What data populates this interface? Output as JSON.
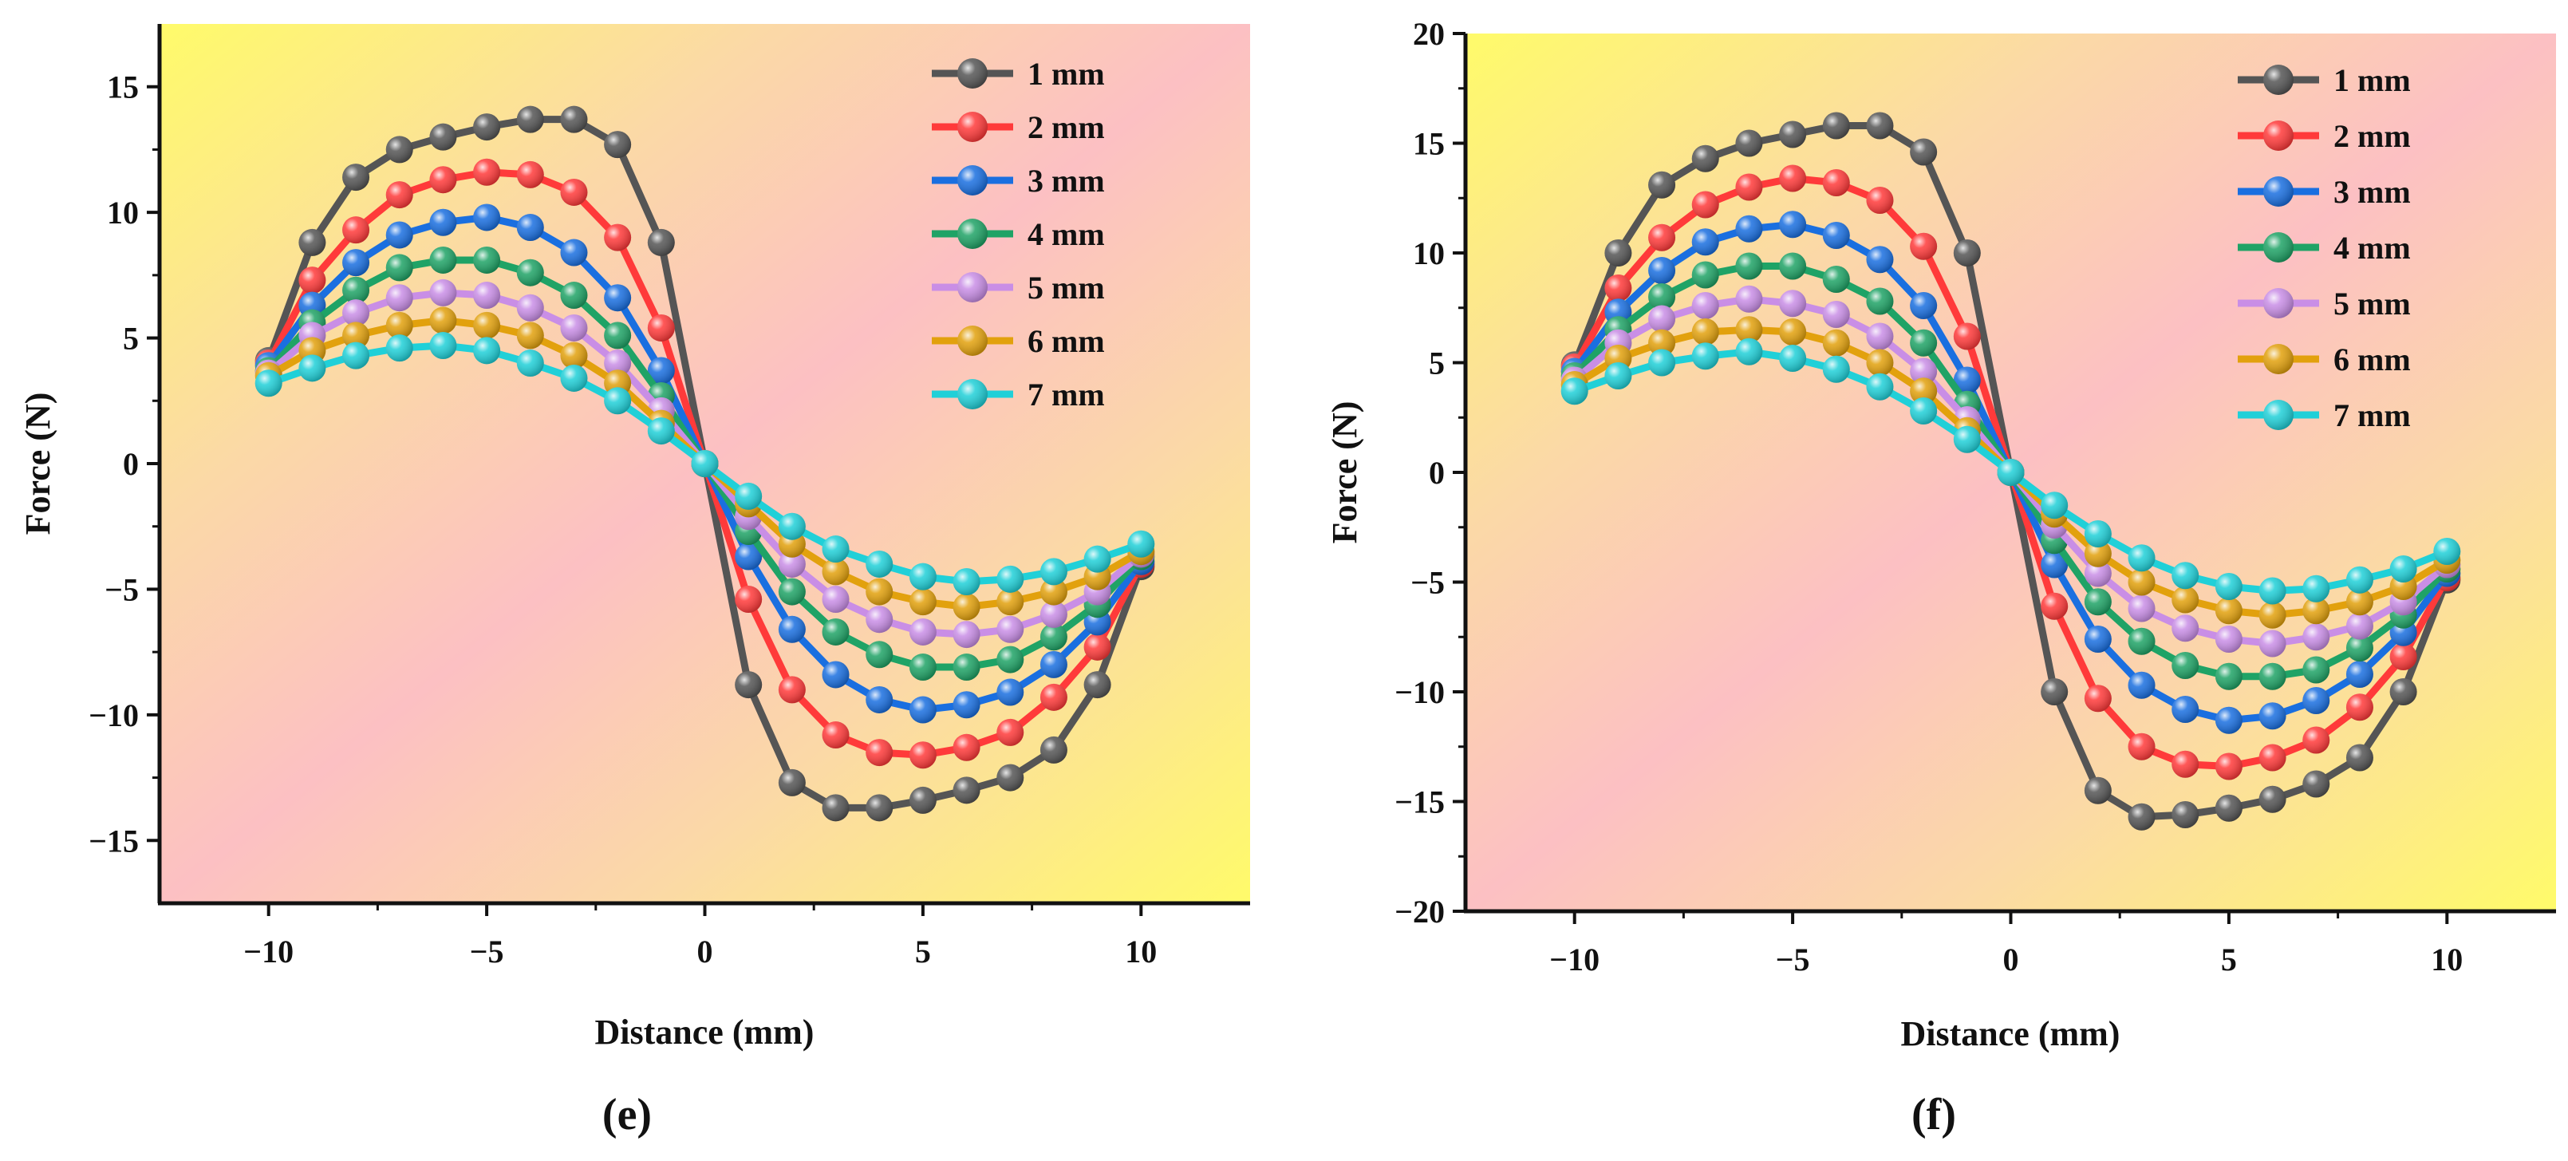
{
  "chart_data": [
    {
      "type": "line",
      "panel_label": "e",
      "xlabel": "Distance (mm)",
      "ylabel": "Force (N)",
      "xlim": [
        -12.5,
        12.5
      ],
      "ylim": [
        -17.5,
        17.5
      ],
      "xticks": [
        -10,
        -5,
        0,
        5,
        10
      ],
      "yticks": [
        -15,
        -10,
        -5,
        0,
        5,
        10,
        15
      ],
      "xtick_labels": [
        "−10",
        "−5",
        "0",
        "5",
        "10"
      ],
      "ytick_labels": [
        "−15",
        "−10",
        "−5",
        "0",
        "5",
        "10",
        "15"
      ],
      "legend_position": "top-right",
      "grid": false,
      "x": [
        -10,
        -9,
        -8,
        -7,
        -6,
        -5,
        -4,
        -3,
        -2,
        -1,
        0,
        1,
        2,
        3,
        4,
        5,
        6,
        7,
        8,
        9,
        10
      ],
      "series": [
        {
          "name": "1 mm",
          "color": "#555555",
          "values": [
            4.1,
            8.8,
            11.4,
            12.5,
            13.0,
            13.4,
            13.7,
            13.7,
            12.7,
            8.8,
            0,
            -8.8,
            -12.7,
            -13.7,
            -13.7,
            -13.4,
            -13.0,
            -12.5,
            -11.4,
            -8.8,
            -4.1
          ]
        },
        {
          "name": "2 mm",
          "color": "#ff3a3a",
          "values": [
            4.0,
            7.3,
            9.3,
            10.7,
            11.3,
            11.6,
            11.5,
            10.8,
            9.0,
            5.4,
            0,
            -5.4,
            -9.0,
            -10.8,
            -11.5,
            -11.6,
            -11.3,
            -10.7,
            -9.3,
            -7.3,
            -4.0
          ]
        },
        {
          "name": "3 mm",
          "color": "#1a6fe0",
          "values": [
            3.9,
            6.3,
            8.0,
            9.1,
            9.6,
            9.8,
            9.4,
            8.4,
            6.6,
            3.7,
            0,
            -3.7,
            -6.6,
            -8.4,
            -9.4,
            -9.8,
            -9.6,
            -9.1,
            -8.0,
            -6.3,
            -3.9
          ]
        },
        {
          "name": "4 mm",
          "color": "#1fa366",
          "values": [
            3.7,
            5.6,
            6.9,
            7.8,
            8.1,
            8.1,
            7.6,
            6.7,
            5.1,
            2.7,
            0,
            -2.7,
            -5.1,
            -6.7,
            -7.6,
            -8.1,
            -8.1,
            -7.8,
            -6.9,
            -5.6,
            -3.7
          ]
        },
        {
          "name": "5 mm",
          "color": "#c98ee6",
          "values": [
            3.6,
            5.1,
            6.0,
            6.6,
            6.8,
            6.7,
            6.2,
            5.4,
            4.0,
            2.1,
            0,
            -2.1,
            -4.0,
            -5.4,
            -6.2,
            -6.7,
            -6.8,
            -6.6,
            -6.0,
            -5.1,
            -3.6
          ]
        },
        {
          "name": "6 mm",
          "color": "#e2a10d",
          "values": [
            3.5,
            4.5,
            5.1,
            5.5,
            5.7,
            5.5,
            5.1,
            4.3,
            3.2,
            1.6,
            0,
            -1.6,
            -3.2,
            -4.3,
            -5.1,
            -5.5,
            -5.7,
            -5.5,
            -5.1,
            -4.5,
            -3.5
          ]
        },
        {
          "name": "7 mm",
          "color": "#20d0d8",
          "values": [
            3.2,
            3.8,
            4.3,
            4.6,
            4.7,
            4.5,
            4.0,
            3.4,
            2.5,
            1.3,
            0,
            -1.3,
            -2.5,
            -3.4,
            -4.0,
            -4.5,
            -4.7,
            -4.6,
            -4.3,
            -3.8,
            -3.2
          ]
        }
      ]
    },
    {
      "type": "line",
      "panel_label": "f",
      "xlabel": "Distance (mm)",
      "ylabel": "Force (N)",
      "xlim": [
        -12.5,
        12.5
      ],
      "ylim": [
        -20,
        20
      ],
      "xticks": [
        -10,
        -5,
        0,
        5,
        10
      ],
      "yticks": [
        -20,
        -15,
        -10,
        -5,
        0,
        5,
        10,
        15,
        20
      ],
      "xtick_labels": [
        "−10",
        "−5",
        "0",
        "5",
        "10"
      ],
      "ytick_labels": [
        "−20",
        "−15",
        "−10",
        "−5",
        "0",
        "5",
        "10",
        "15",
        "20"
      ],
      "legend_position": "top-right",
      "grid": false,
      "x": [
        -10,
        -9,
        -8,
        -7,
        -6,
        -5,
        -4,
        -3,
        -2,
        -1,
        0,
        1,
        2,
        3,
        4,
        5,
        6,
        7,
        8,
        9,
        10
      ],
      "series": [
        {
          "name": "1 mm",
          "color": "#555555",
          "values": [
            4.9,
            10.0,
            13.1,
            14.3,
            15.0,
            15.4,
            15.8,
            15.8,
            14.6,
            10.0,
            0,
            -10.0,
            -14.5,
            -15.7,
            -15.6,
            -15.3,
            -14.9,
            -14.2,
            -13.0,
            -10.0,
            -4.9
          ]
        },
        {
          "name": "2 mm",
          "color": "#ff3a3a",
          "values": [
            4.8,
            8.4,
            10.7,
            12.2,
            13.0,
            13.4,
            13.2,
            12.4,
            10.3,
            6.2,
            0,
            -6.1,
            -10.3,
            -12.5,
            -13.3,
            -13.4,
            -13.0,
            -12.2,
            -10.7,
            -8.4,
            -4.8
          ]
        },
        {
          "name": "3 mm",
          "color": "#1a6fe0",
          "values": [
            4.6,
            7.3,
            9.2,
            10.5,
            11.1,
            11.3,
            10.8,
            9.7,
            7.6,
            4.2,
            0,
            -4.2,
            -7.6,
            -9.7,
            -10.8,
            -11.3,
            -11.1,
            -10.4,
            -9.2,
            -7.3,
            -4.6
          ]
        },
        {
          "name": "4 mm",
          "color": "#1fa366",
          "values": [
            4.4,
            6.5,
            8.0,
            9.0,
            9.4,
            9.4,
            8.8,
            7.8,
            5.9,
            3.1,
            0,
            -3.1,
            -5.9,
            -7.7,
            -8.8,
            -9.3,
            -9.3,
            -9.0,
            -8.0,
            -6.5,
            -4.4
          ]
        },
        {
          "name": "5 mm",
          "color": "#c98ee6",
          "values": [
            4.2,
            5.9,
            7.0,
            7.6,
            7.9,
            7.7,
            7.2,
            6.2,
            4.6,
            2.4,
            0,
            -2.4,
            -4.6,
            -6.2,
            -7.1,
            -7.6,
            -7.8,
            -7.5,
            -7.0,
            -5.9,
            -4.2
          ]
        },
        {
          "name": "6 mm",
          "color": "#e2a10d",
          "values": [
            4.0,
            5.2,
            5.9,
            6.4,
            6.5,
            6.4,
            5.9,
            5.0,
            3.7,
            1.9,
            0,
            -1.9,
            -3.7,
            -5.0,
            -5.8,
            -6.3,
            -6.5,
            -6.3,
            -5.9,
            -5.2,
            -4.0
          ]
        },
        {
          "name": "7 mm",
          "color": "#20d0d8",
          "values": [
            3.7,
            4.4,
            5.0,
            5.3,
            5.5,
            5.2,
            4.7,
            3.9,
            2.8,
            1.5,
            0,
            -1.5,
            -2.8,
            -3.9,
            -4.7,
            -5.2,
            -5.4,
            -5.3,
            -4.9,
            -4.4,
            -3.6
          ]
        }
      ]
    }
  ]
}
